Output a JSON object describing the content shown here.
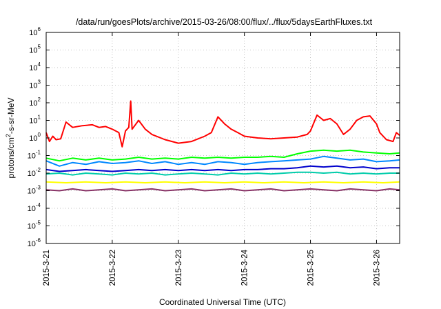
{
  "chart_data": {
    "type": "line",
    "title": "/data/run/goesPlots/archive/2015-03-26/08:00/flux/../flux/5daysEarthFluxes.txt",
    "xlabel": "Coordinated Universal Time (UTC)",
    "ylabel": {
      "base": "protons/cm",
      "sup": "2",
      "rest": "-s-sr-MeV"
    },
    "x_ticks": [
      {
        "label": "2015-3-21",
        "t": 0
      },
      {
        "label": "2015-3-22",
        "t": 1
      },
      {
        "label": "2015-3-23",
        "t": 2
      },
      {
        "label": "2015-3-24",
        "t": 3
      },
      {
        "label": "2015-3-25",
        "t": 4
      },
      {
        "label": "2015-3-26",
        "t": 5
      }
    ],
    "xlim_days": [
      0,
      5.35
    ],
    "ylim_exp": [
      -6,
      6
    ],
    "y_scale": "log",
    "y_ticks": [
      {
        "base": "10",
        "exp": "-6",
        "v": -6
      },
      {
        "base": "10",
        "exp": "-5",
        "v": -5
      },
      {
        "base": "10",
        "exp": "-4",
        "v": -4
      },
      {
        "base": "10",
        "exp": "-3",
        "v": -3
      },
      {
        "base": "10",
        "exp": "-2",
        "v": -2
      },
      {
        "base": "10",
        "exp": "-1",
        "v": -1
      },
      {
        "base": "10",
        "exp": "0",
        "v": 0
      },
      {
        "base": "10",
        "exp": "1",
        "v": 1
      },
      {
        "base": "10",
        "exp": "2",
        "v": 2
      },
      {
        "base": "10",
        "exp": "3",
        "v": 3
      },
      {
        "base": "10",
        "exp": "4",
        "v": 4
      },
      {
        "base": "10",
        "exp": "5",
        "v": 5
      },
      {
        "base": "10",
        "exp": "6",
        "v": 6
      }
    ],
    "grid": true,
    "series": [
      {
        "color": "#ff0000",
        "points": [
          [
            0,
            0.3
          ],
          [
            0.05,
            -0.2
          ],
          [
            0.1,
            0.1
          ],
          [
            0.15,
            -0.1
          ],
          [
            0.22,
            -0.05
          ],
          [
            0.3,
            0.9
          ],
          [
            0.4,
            0.6
          ],
          [
            0.55,
            0.7
          ],
          [
            0.7,
            0.75
          ],
          [
            0.8,
            0.6
          ],
          [
            0.9,
            0.65
          ],
          [
            1.0,
            0.5
          ],
          [
            1.1,
            0.3
          ],
          [
            1.15,
            -0.5
          ],
          [
            1.2,
            0.4
          ],
          [
            1.25,
            0.6
          ],
          [
            1.28,
            2.1
          ],
          [
            1.3,
            0.5
          ],
          [
            1.4,
            1.0
          ],
          [
            1.5,
            0.5
          ],
          [
            1.6,
            0.2
          ],
          [
            1.8,
            -0.1
          ],
          [
            2.0,
            -0.3
          ],
          [
            2.2,
            -0.2
          ],
          [
            2.4,
            0.1
          ],
          [
            2.5,
            0.3
          ],
          [
            2.6,
            1.2
          ],
          [
            2.7,
            0.8
          ],
          [
            2.8,
            0.5
          ],
          [
            2.9,
            0.3
          ],
          [
            3.0,
            0.1
          ],
          [
            3.2,
            0.0
          ],
          [
            3.4,
            -0.05
          ],
          [
            3.6,
            0.0
          ],
          [
            3.8,
            0.05
          ],
          [
            3.95,
            0.2
          ],
          [
            4.0,
            0.4
          ],
          [
            4.1,
            1.3
          ],
          [
            4.2,
            1.0
          ],
          [
            4.3,
            1.1
          ],
          [
            4.4,
            0.8
          ],
          [
            4.5,
            0.2
          ],
          [
            4.6,
            0.5
          ],
          [
            4.7,
            1.0
          ],
          [
            4.8,
            1.2
          ],
          [
            4.9,
            1.25
          ],
          [
            5.0,
            0.8
          ],
          [
            5.05,
            0.3
          ],
          [
            5.15,
            -0.1
          ],
          [
            5.25,
            -0.2
          ],
          [
            5.3,
            0.3
          ],
          [
            5.35,
            0.15
          ]
        ]
      },
      {
        "color": "#00ff00",
        "points": [
          [
            0,
            -1.15
          ],
          [
            0.2,
            -1.3
          ],
          [
            0.4,
            -1.15
          ],
          [
            0.6,
            -1.25
          ],
          [
            0.8,
            -1.15
          ],
          [
            1.0,
            -1.25
          ],
          [
            1.2,
            -1.2
          ],
          [
            1.4,
            -1.1
          ],
          [
            1.6,
            -1.2
          ],
          [
            1.8,
            -1.15
          ],
          [
            2.0,
            -1.2
          ],
          [
            2.2,
            -1.1
          ],
          [
            2.4,
            -1.15
          ],
          [
            2.6,
            -1.1
          ],
          [
            2.8,
            -1.15
          ],
          [
            3.0,
            -1.1
          ],
          [
            3.2,
            -1.1
          ],
          [
            3.4,
            -1.05
          ],
          [
            3.6,
            -1.1
          ],
          [
            3.8,
            -0.9
          ],
          [
            4.0,
            -0.75
          ],
          [
            4.2,
            -0.7
          ],
          [
            4.4,
            -0.75
          ],
          [
            4.6,
            -0.7
          ],
          [
            4.8,
            -0.8
          ],
          [
            5.0,
            -0.85
          ],
          [
            5.2,
            -0.9
          ],
          [
            5.35,
            -0.85
          ]
        ]
      },
      {
        "color": "#0088ff",
        "points": [
          [
            0,
            -1.3
          ],
          [
            0.2,
            -1.6
          ],
          [
            0.4,
            -1.4
          ],
          [
            0.6,
            -1.5
          ],
          [
            0.8,
            -1.35
          ],
          [
            1.0,
            -1.45
          ],
          [
            1.2,
            -1.4
          ],
          [
            1.4,
            -1.3
          ],
          [
            1.6,
            -1.45
          ],
          [
            1.8,
            -1.35
          ],
          [
            2.0,
            -1.5
          ],
          [
            2.2,
            -1.4
          ],
          [
            2.4,
            -1.5
          ],
          [
            2.6,
            -1.35
          ],
          [
            2.8,
            -1.4
          ],
          [
            3.0,
            -1.5
          ],
          [
            3.2,
            -1.4
          ],
          [
            3.4,
            -1.35
          ],
          [
            3.6,
            -1.3
          ],
          [
            3.8,
            -1.25
          ],
          [
            4.0,
            -1.2
          ],
          [
            4.2,
            -1.05
          ],
          [
            4.4,
            -1.15
          ],
          [
            4.6,
            -1.25
          ],
          [
            4.8,
            -1.2
          ],
          [
            5.0,
            -1.35
          ],
          [
            5.2,
            -1.3
          ],
          [
            5.35,
            -1.25
          ]
        ]
      },
      {
        "color": "#0000cc",
        "points": [
          [
            0,
            -1.8
          ],
          [
            0.2,
            -1.9
          ],
          [
            0.4,
            -1.85
          ],
          [
            0.6,
            -1.8
          ],
          [
            0.8,
            -1.85
          ],
          [
            1.0,
            -1.9
          ],
          [
            1.2,
            -1.85
          ],
          [
            1.4,
            -1.8
          ],
          [
            1.6,
            -1.85
          ],
          [
            1.8,
            -1.8
          ],
          [
            2.0,
            -1.85
          ],
          [
            2.2,
            -1.8
          ],
          [
            2.4,
            -1.85
          ],
          [
            2.6,
            -1.8
          ],
          [
            2.8,
            -1.85
          ],
          [
            3.0,
            -1.8
          ],
          [
            3.2,
            -1.8
          ],
          [
            3.4,
            -1.75
          ],
          [
            3.6,
            -1.75
          ],
          [
            3.8,
            -1.7
          ],
          [
            4.0,
            -1.6
          ],
          [
            4.2,
            -1.65
          ],
          [
            4.4,
            -1.6
          ],
          [
            4.6,
            -1.7
          ],
          [
            4.8,
            -1.65
          ],
          [
            5.0,
            -1.75
          ],
          [
            5.2,
            -1.7
          ],
          [
            5.35,
            -1.7
          ]
        ]
      },
      {
        "color": "#00ccaa",
        "points": [
          [
            0,
            -2.05
          ],
          [
            0.2,
            -2.0
          ],
          [
            0.4,
            -2.1
          ],
          [
            0.6,
            -2.0
          ],
          [
            0.8,
            -2.05
          ],
          [
            1.0,
            -2.1
          ],
          [
            1.2,
            -2.0
          ],
          [
            1.4,
            -2.05
          ],
          [
            1.6,
            -2.0
          ],
          [
            1.8,
            -2.1
          ],
          [
            2.0,
            -2.05
          ],
          [
            2.2,
            -2.0
          ],
          [
            2.4,
            -2.05
          ],
          [
            2.6,
            -2.1
          ],
          [
            2.8,
            -2.0
          ],
          [
            3.0,
            -2.05
          ],
          [
            3.2,
            -2.0
          ],
          [
            3.4,
            -2.05
          ],
          [
            3.6,
            -2.0
          ],
          [
            3.8,
            -1.95
          ],
          [
            4.0,
            -1.95
          ],
          [
            4.2,
            -2.0
          ],
          [
            4.4,
            -1.95
          ],
          [
            4.6,
            -2.05
          ],
          [
            4.8,
            -2.0
          ],
          [
            5.0,
            -2.05
          ],
          [
            5.2,
            -2.0
          ],
          [
            5.35,
            -2.0
          ]
        ]
      },
      {
        "color": "#ffff00",
        "points": [
          [
            0,
            -2.5
          ],
          [
            0.3,
            -2.55
          ],
          [
            0.6,
            -2.5
          ],
          [
            0.9,
            -2.55
          ],
          [
            1.2,
            -2.5
          ],
          [
            1.5,
            -2.55
          ],
          [
            1.8,
            -2.5
          ],
          [
            2.1,
            -2.55
          ],
          [
            2.4,
            -2.5
          ],
          [
            2.7,
            -2.55
          ],
          [
            3.0,
            -2.5
          ],
          [
            3.3,
            -2.55
          ],
          [
            3.6,
            -2.5
          ],
          [
            3.9,
            -2.55
          ],
          [
            4.2,
            -2.5
          ],
          [
            4.5,
            -2.55
          ],
          [
            4.8,
            -2.5
          ],
          [
            5.1,
            -2.55
          ],
          [
            5.35,
            -2.5
          ]
        ]
      },
      {
        "color": "#883366",
        "points": [
          [
            0,
            -2.95
          ],
          [
            0.2,
            -3.0
          ],
          [
            0.4,
            -2.9
          ],
          [
            0.6,
            -3.0
          ],
          [
            0.8,
            -2.95
          ],
          [
            1.0,
            -2.9
          ],
          [
            1.2,
            -3.0
          ],
          [
            1.4,
            -2.95
          ],
          [
            1.6,
            -2.9
          ],
          [
            1.8,
            -3.0
          ],
          [
            2.0,
            -2.95
          ],
          [
            2.2,
            -2.9
          ],
          [
            2.4,
            -3.0
          ],
          [
            2.6,
            -2.95
          ],
          [
            2.8,
            -2.9
          ],
          [
            3.0,
            -3.0
          ],
          [
            3.2,
            -2.95
          ],
          [
            3.4,
            -2.9
          ],
          [
            3.6,
            -3.0
          ],
          [
            3.8,
            -2.95
          ],
          [
            4.0,
            -2.9
          ],
          [
            4.2,
            -2.95
          ],
          [
            4.4,
            -3.0
          ],
          [
            4.6,
            -2.9
          ],
          [
            4.8,
            -2.95
          ],
          [
            5.0,
            -3.0
          ],
          [
            5.2,
            -2.9
          ],
          [
            5.35,
            -2.95
          ]
        ]
      }
    ]
  }
}
